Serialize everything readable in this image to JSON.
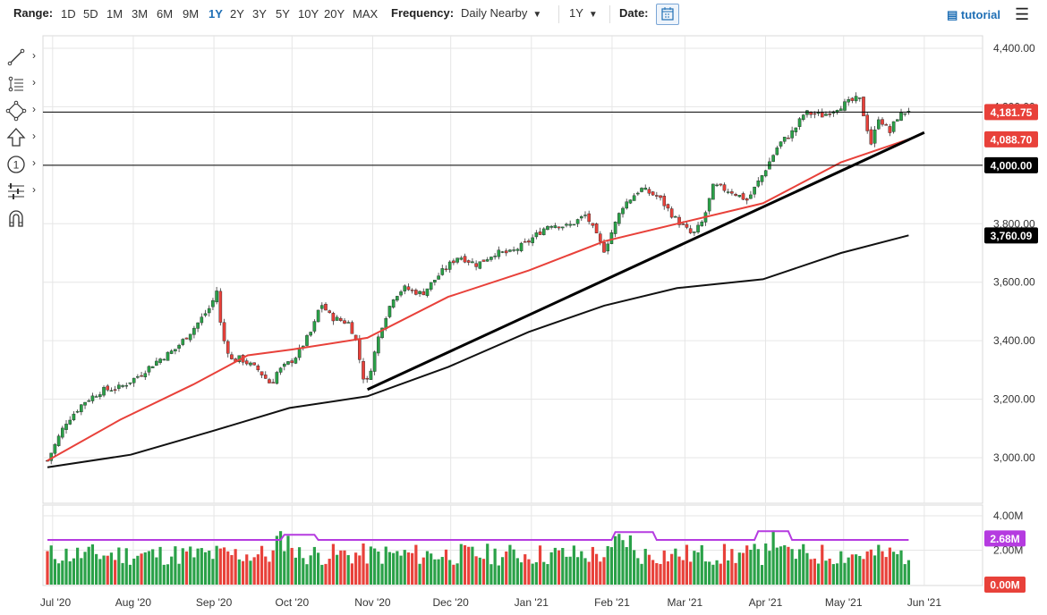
{
  "toolbar": {
    "range_label": "Range:",
    "ranges": [
      "1D",
      "5D",
      "1M",
      "3M",
      "6M",
      "9M",
      "1Y",
      "2Y",
      "3Y",
      "5Y",
      "10Y",
      "20Y",
      "MAX"
    ],
    "active_range": "1Y",
    "frequency_label": "Frequency:",
    "frequency_value": "Daily Nearby",
    "period_value": "1Y",
    "date_label": "Date:",
    "tutorial_label": "tutorial",
    "accent_color": "#1f6fb5"
  },
  "tools": [
    {
      "name": "trendline-tool",
      "icon": "line-draw-icon"
    },
    {
      "name": "fibonacci-tool",
      "icon": "list-levels-icon"
    },
    {
      "name": "shapes-tool",
      "icon": "diamond-nodes-icon"
    },
    {
      "name": "arrow-tool",
      "icon": "arrow-up-icon"
    },
    {
      "name": "annotation-tool",
      "icon": "numbered-circle-icon"
    },
    {
      "name": "measure-tool",
      "icon": "sliders-icon"
    },
    {
      "name": "magnet-tool",
      "icon": "magnet-icon"
    }
  ],
  "chart_data": {
    "type": "candlestick",
    "instrument_note": "",
    "price_axis": {
      "ticks": [
        "4,400.00",
        "4,200.00",
        "4,000.00",
        "3,800.00",
        "3,600.00",
        "3,400.00",
        "3,200.00",
        "3,000.00"
      ],
      "range": [
        2940,
        4420
      ]
    },
    "x_axis_ticks": [
      "Jul '20",
      "Aug '20",
      "Sep '20",
      "Oct '20",
      "Nov '20",
      "Dec '20",
      "Jan '21",
      "Feb '21",
      "Mar '21",
      "Apr '21",
      "May '21",
      "Jun '21"
    ],
    "price_labels": [
      {
        "value": "4,181.75",
        "color": "#e8413a",
        "kind": "last-price"
      },
      {
        "value": "4,088.70",
        "color": "#e8413a",
        "kind": "moving-average-50"
      },
      {
        "value": "4,000.00",
        "color": "#000000",
        "kind": "horizontal-line"
      },
      {
        "value": "3,760.09",
        "color": "#000000",
        "kind": "moving-average-200"
      }
    ],
    "horizontal_lines": [
      4181.75,
      4000
    ],
    "trendline": {
      "from": {
        "date": "2020-10-30",
        "price": 3233
      },
      "to": {
        "date": "2021-06-01",
        "price": 4112
      }
    },
    "close_path": [
      [
        "2020-06-29",
        2990
      ],
      [
        "2020-07-06",
        3120
      ],
      [
        "2020-07-13",
        3190
      ],
      [
        "2020-07-20",
        3230
      ],
      [
        "2020-07-27",
        3240
      ],
      [
        "2020-08-03",
        3280
      ],
      [
        "2020-08-10",
        3330
      ],
      [
        "2020-08-17",
        3370
      ],
      [
        "2020-08-24",
        3440
      ],
      [
        "2020-08-31",
        3520
      ],
      [
        "2020-09-02",
        3575
      ],
      [
        "2020-09-04",
        3420
      ],
      [
        "2020-09-08",
        3330
      ],
      [
        "2020-09-11",
        3340
      ],
      [
        "2020-09-18",
        3300
      ],
      [
        "2020-09-23",
        3250
      ],
      [
        "2020-09-25",
        3290
      ],
      [
        "2020-10-02",
        3340
      ],
      [
        "2020-10-09",
        3440
      ],
      [
        "2020-10-12",
        3530
      ],
      [
        "2020-10-16",
        3480
      ],
      [
        "2020-10-23",
        3460
      ],
      [
        "2020-10-26",
        3390
      ],
      [
        "2020-10-28",
        3280
      ],
      [
        "2020-10-30",
        3260
      ],
      [
        "2020-11-04",
        3440
      ],
      [
        "2020-11-09",
        3550
      ],
      [
        "2020-11-13",
        3580
      ],
      [
        "2020-11-20",
        3560
      ],
      [
        "2020-11-27",
        3630
      ],
      [
        "2020-12-04",
        3690
      ],
      [
        "2020-12-11",
        3660
      ],
      [
        "2020-12-18",
        3700
      ],
      [
        "2020-12-24",
        3700
      ],
      [
        "2020-12-31",
        3740
      ],
      [
        "2021-01-08",
        3800
      ],
      [
        "2021-01-15",
        3790
      ],
      [
        "2021-01-22",
        3830
      ],
      [
        "2021-01-27",
        3740
      ],
      [
        "2021-01-29",
        3710
      ],
      [
        "2021-02-05",
        3860
      ],
      [
        "2021-02-12",
        3920
      ],
      [
        "2021-02-19",
        3890
      ],
      [
        "2021-02-25",
        3820
      ],
      [
        "2021-03-04",
        3760
      ],
      [
        "2021-03-08",
        3810
      ],
      [
        "2021-03-12",
        3930
      ],
      [
        "2021-03-19",
        3910
      ],
      [
        "2021-03-25",
        3880
      ],
      [
        "2021-03-31",
        3970
      ],
      [
        "2021-04-06",
        4070
      ],
      [
        "2021-04-12",
        4120
      ],
      [
        "2021-04-16",
        4180
      ],
      [
        "2021-04-23",
        4170
      ],
      [
        "2021-04-29",
        4200
      ],
      [
        "2021-05-07",
        4230
      ],
      [
        "2021-05-12",
        4060
      ],
      [
        "2021-05-14",
        4170
      ],
      [
        "2021-05-19",
        4110
      ],
      [
        "2021-05-21",
        4160
      ],
      [
        "2021-05-26",
        4190
      ]
    ],
    "ma50_path": [
      [
        "2020-06-29",
        2990
      ],
      [
        "2020-07-27",
        3130
      ],
      [
        "2020-08-24",
        3250
      ],
      [
        "2020-09-14",
        3350
      ],
      [
        "2020-10-01",
        3370
      ],
      [
        "2020-10-30",
        3410
      ],
      [
        "2020-11-30",
        3550
      ],
      [
        "2020-12-31",
        3640
      ],
      [
        "2021-01-29",
        3740
      ],
      [
        "2021-02-26",
        3800
      ],
      [
        "2021-03-31",
        3870
      ],
      [
        "2021-04-30",
        4010
      ],
      [
        "2021-05-26",
        4088.7
      ]
    ],
    "ma200_path": [
      [
        "2020-06-29",
        2967
      ],
      [
        "2020-07-31",
        3010
      ],
      [
        "2020-08-31",
        3090
      ],
      [
        "2020-09-30",
        3170
      ],
      [
        "2020-10-30",
        3210
      ],
      [
        "2020-11-30",
        3310
      ],
      [
        "2020-12-31",
        3430
      ],
      [
        "2021-01-29",
        3520
      ],
      [
        "2021-02-26",
        3580
      ],
      [
        "2021-03-31",
        3610
      ],
      [
        "2021-04-30",
        3700
      ],
      [
        "2021-05-26",
        3760.09
      ]
    ],
    "volume": {
      "axis_ticks": [
        "4.00M",
        "2.00M"
      ],
      "labels": [
        {
          "value": "2.68M",
          "color": "#b53be0"
        },
        {
          "value": "0.00M",
          "color": "#e8413a"
        }
      ],
      "range": [
        0,
        4.0
      ],
      "avg_color": "#b53be0",
      "avg_level": 2.6,
      "bars_summary": "mixed green/red daily volume bars mostly between 1.0M and 2.4M"
    }
  }
}
